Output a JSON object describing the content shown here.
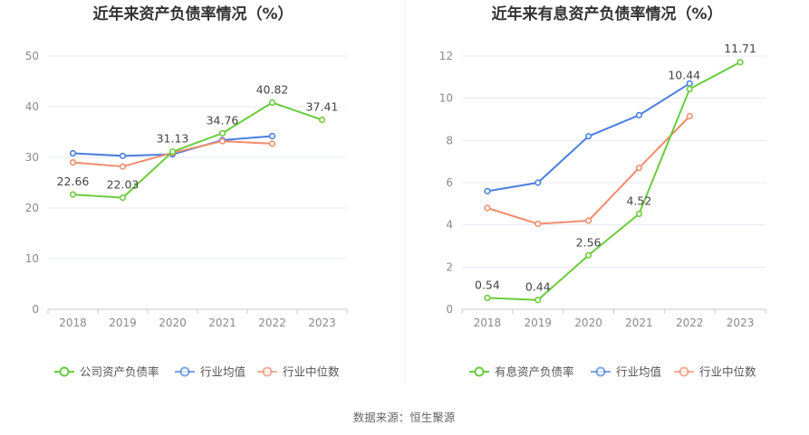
{
  "source_text": "数据来源：恒生聚源",
  "chart_data": [
    {
      "type": "line",
      "title": "近年来资产负债率情况（%）",
      "categories": [
        "2018",
        "2019",
        "2020",
        "2021",
        "2022",
        "2023"
      ],
      "ylim": [
        0,
        50
      ],
      "yticks": [
        0,
        10,
        20,
        30,
        40,
        50
      ],
      "grid": true,
      "legend_position": "bottom",
      "series": [
        {
          "name": "公司资产负债率",
          "color": "#6acb3c",
          "labeled": true,
          "values": [
            22.66,
            22.03,
            31.13,
            34.76,
            40.82,
            37.41
          ],
          "labels": [
            "22.66",
            "22.03",
            "31.13",
            "34.76",
            "40.82",
            "37.41"
          ]
        },
        {
          "name": "行业均值",
          "color": "#4a7ee0",
          "labeled": false,
          "values": [
            30.8,
            30.3,
            30.6,
            33.4,
            34.2,
            null
          ]
        },
        {
          "name": "行业中位数",
          "color": "#f28c6d",
          "labeled": false,
          "values": [
            29.0,
            28.2,
            30.9,
            33.2,
            32.7,
            null
          ]
        }
      ]
    },
    {
      "type": "line",
      "title": "近年来有息资产负债率情况（%）",
      "categories": [
        "2018",
        "2019",
        "2020",
        "2021",
        "2022",
        "2023"
      ],
      "ylim": [
        0,
        12
      ],
      "yticks": [
        0,
        2,
        4,
        6,
        8,
        10,
        12
      ],
      "grid": true,
      "legend_position": "bottom",
      "series": [
        {
          "name": "有息资产负债率",
          "color": "#6acb3c",
          "labeled": true,
          "values": [
            0.54,
            0.44,
            2.56,
            4.52,
            10.44,
            11.71
          ],
          "labels": [
            "0.54",
            "0.44",
            "2.56",
            "4.52",
            "10.44",
            "11.71"
          ]
        },
        {
          "name": "行业均值",
          "color": "#4a7ee0",
          "labeled": false,
          "values": [
            5.6,
            6.0,
            8.2,
            9.2,
            10.7,
            null
          ]
        },
        {
          "name": "行业中位数",
          "color": "#f28c6d",
          "labeled": false,
          "values": [
            4.8,
            4.05,
            4.2,
            6.7,
            9.15,
            null
          ]
        }
      ]
    }
  ]
}
